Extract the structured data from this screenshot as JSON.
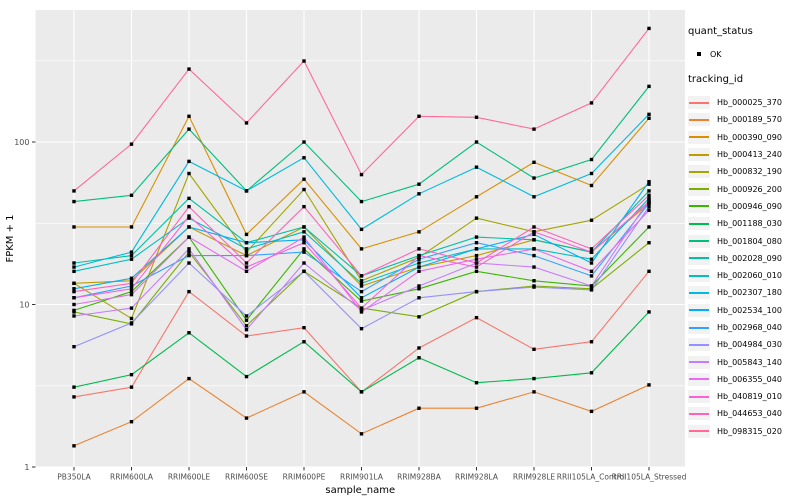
{
  "axes": {
    "x_title": "sample_name",
    "y_title": "FPKM + 1",
    "y_tick_labels": [
      "1",
      "10",
      "100"
    ]
  },
  "legend": {
    "quant_status_title": "quant_status",
    "quant_status_value": "OK",
    "ok_marker": "black-square-point",
    "tracking_id_title": "tracking_id"
  },
  "style": {
    "panel_background": "#ebebeb",
    "grid_color": "#ffffff",
    "point_color": "#000000",
    "tick_color": "#333333",
    "tick_label_color": "#4d4d4d",
    "legend_key_background": "#f2f2f2"
  },
  "chart_data": {
    "type": "line",
    "title": "",
    "xlabel": "sample_name",
    "ylabel": "FPKM + 1",
    "y_scale": "log10",
    "y_ticks": [
      1,
      10,
      100
    ],
    "y_minor_gridlines": [
      3.16,
      31.6,
      316
    ],
    "ylim": [
      1,
      650
    ],
    "grid": true,
    "legend_position": "right",
    "marker": "small black square (quant_status = OK)",
    "categories": [
      "PB350LA",
      "RRIM600LA",
      "RRIM600LE",
      "RRIM600SE",
      "RRIM600PE",
      "RRIM901LA",
      "RRIM928BA",
      "RRIM928LA",
      "RRIM928LE",
      "RRII105LA_Control",
      "RRII105LA_Stressed"
    ],
    "series": [
      {
        "name": "Hb_000025_370",
        "color": "#f8766d",
        "values": [
          2.7,
          3.1,
          12,
          6.4,
          7.2,
          2.9,
          5.4,
          8.3,
          5.3,
          5.9,
          16
        ]
      },
      {
        "name": "Hb_000189_570",
        "color": "#ea8331",
        "values": [
          1.35,
          1.9,
          3.5,
          2.0,
          2.9,
          1.6,
          2.3,
          2.3,
          2.9,
          2.2,
          3.2
        ]
      },
      {
        "name": "Hb_000390_090",
        "color": "#d89000",
        "values": [
          30,
          30,
          144,
          27,
          59,
          22,
          28,
          46,
          75,
          54,
          140
        ]
      },
      {
        "name": "Hb_000413_240",
        "color": "#c09b00",
        "values": [
          13.5,
          14,
          30,
          20,
          30,
          13,
          17,
          20,
          25,
          21,
          42
        ]
      },
      {
        "name": "Hb_000832_190",
        "color": "#a3a500",
        "values": [
          13.5,
          8.2,
          64,
          21,
          51,
          14,
          19.5,
          34,
          28,
          33,
          55
        ]
      },
      {
        "name": "Hb_000926_200",
        "color": "#7cae00",
        "values": [
          9,
          7.6,
          21,
          7.4,
          16,
          9.5,
          8.4,
          12,
          13,
          12.5,
          24
        ]
      },
      {
        "name": "Hb_000946_090",
        "color": "#39b600",
        "values": [
          9.2,
          12,
          26,
          8,
          22,
          10.5,
          12.5,
          16,
          14,
          13,
          30
        ]
      },
      {
        "name": "Hb_001188_030",
        "color": "#00bb4e",
        "values": [
          3.1,
          3.7,
          6.7,
          3.6,
          5.9,
          2.9,
          4.7,
          3.3,
          3.5,
          3.8,
          9.0
        ]
      },
      {
        "name": "Hb_001804_080",
        "color": "#00bf7d",
        "values": [
          43,
          47,
          120,
          50,
          100,
          43,
          55,
          100,
          60,
          78,
          220
        ]
      },
      {
        "name": "Hb_002028_090",
        "color": "#00c1a3",
        "values": [
          18,
          20,
          45,
          24,
          30,
          15,
          20,
          26,
          25,
          21,
          50
        ]
      },
      {
        "name": "Hb_002060_010",
        "color": "#00bfc4",
        "values": [
          16,
          19,
          34,
          22,
          28,
          13.5,
          18,
          22,
          22,
          19,
          45
        ]
      },
      {
        "name": "Hb_002307_180",
        "color": "#00bae0",
        "values": [
          17,
          21,
          76,
          50,
          80,
          29,
          48,
          70,
          46,
          64,
          148
        ]
      },
      {
        "name": "Hb_002534_100",
        "color": "#00b0f6",
        "values": [
          12.5,
          14.5,
          30,
          24,
          25,
          11,
          17,
          22,
          27,
          18,
          57
        ]
      },
      {
        "name": "Hb_002968_040",
        "color": "#35a2ff",
        "values": [
          11,
          13,
          20,
          20,
          21,
          12,
          19,
          24,
          20,
          15,
          42
        ]
      },
      {
        "name": "Hb_004984_030",
        "color": "#9590ff",
        "values": [
          5.5,
          7.7,
          18,
          8.5,
          16,
          7.1,
          11,
          12,
          12.8,
          12.3,
          40
        ]
      },
      {
        "name": "Hb_005843_140",
        "color": "#c77cff",
        "values": [
          8.5,
          9.5,
          22,
          7.0,
          18,
          9.2,
          13,
          18,
          17,
          13,
          44
        ]
      },
      {
        "name": "Hb_006355_040",
        "color": "#e76bf3",
        "values": [
          10,
          11.5,
          26,
          16,
          26,
          9.0,
          16,
          19,
          22,
          16,
          38
        ]
      },
      {
        "name": "Hb_040819_010",
        "color": "#fa62db",
        "values": [
          11,
          12.5,
          35,
          17,
          24,
          9.5,
          20,
          17,
          28,
          21,
          43
        ]
      },
      {
        "name": "Hb_044653_040",
        "color": "#ff62bc",
        "values": [
          12,
          13.5,
          40,
          18,
          40,
          15,
          22,
          18,
          30,
          22,
          47
        ]
      },
      {
        "name": "Hb_098315_020",
        "color": "#ff6a98",
        "values": [
          50,
          97,
          281,
          131,
          315,
          63,
          144,
          142,
          120,
          174,
          500
        ]
      }
    ]
  }
}
